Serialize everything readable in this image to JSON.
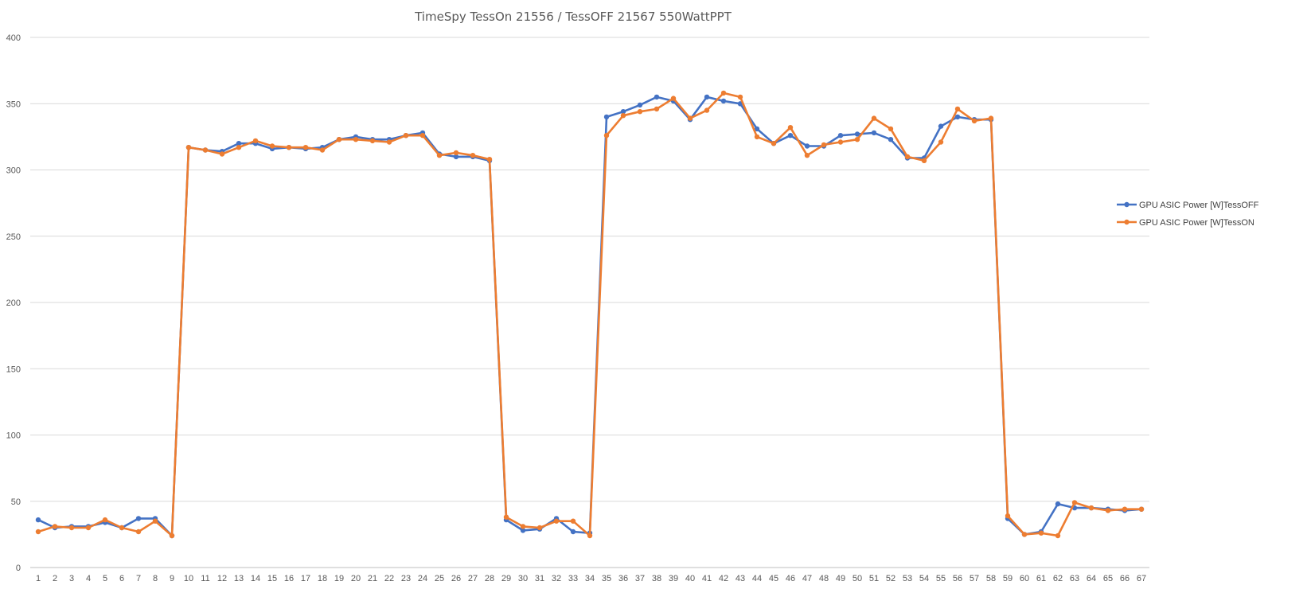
{
  "chart_data": {
    "type": "line",
    "title": "TimeSpy TessOn 21556 / TessOFF 21567 550WattPPT",
    "xlabel": "",
    "ylabel": "",
    "ylim": [
      0,
      400
    ],
    "yticks": [
      "0",
      "50",
      "100",
      "150",
      "200",
      "250",
      "300",
      "350",
      "400"
    ],
    "x": [
      "1",
      "2",
      "3",
      "4",
      "5",
      "6",
      "7",
      "8",
      "9",
      "10",
      "11",
      "12",
      "13",
      "14",
      "15",
      "16",
      "17",
      "18",
      "19",
      "20",
      "21",
      "22",
      "23",
      "24",
      "25",
      "26",
      "27",
      "28",
      "29",
      "30",
      "31",
      "32",
      "33",
      "34",
      "35",
      "36",
      "37",
      "38",
      "39",
      "40",
      "41",
      "42",
      "43",
      "44",
      "45",
      "46",
      "47",
      "48",
      "49",
      "50",
      "51",
      "52",
      "53",
      "54",
      "55",
      "56",
      "57",
      "58",
      "59",
      "60",
      "61",
      "62",
      "63",
      "64",
      "65",
      "66",
      "67"
    ],
    "grid": true,
    "legend_position": "right",
    "series": [
      {
        "name": "GPU ASIC Power [W]TessOFF",
        "color": "#4472C4",
        "values": [
          36,
          30,
          31,
          31,
          34,
          30,
          37,
          37,
          24,
          317,
          315,
          314,
          320,
          320,
          316,
          317,
          316,
          317,
          323,
          325,
          323,
          323,
          326,
          328,
          312,
          310,
          310,
          307,
          36,
          28,
          29,
          37,
          27,
          26,
          340,
          344,
          349,
          355,
          352,
          338,
          355,
          352,
          350,
          331,
          320,
          326,
          318,
          318,
          326,
          327,
          328,
          323,
          309,
          309,
          333,
          340,
          338,
          338,
          37,
          25,
          27,
          48,
          45,
          45,
          44,
          43,
          44
        ]
      },
      {
        "name": "GPU ASIC Power [W]TessON",
        "color": "#ED7D31",
        "values": [
          27,
          31,
          30,
          30,
          36,
          30,
          27,
          35,
          24,
          317,
          315,
          312,
          317,
          322,
          318,
          317,
          317,
          315,
          323,
          323,
          322,
          321,
          326,
          326,
          311,
          313,
          311,
          308,
          38,
          31,
          30,
          35,
          35,
          24,
          326,
          341,
          344,
          346,
          354,
          339,
          345,
          358,
          355,
          325,
          320,
          332,
          311,
          319,
          321,
          323,
          339,
          331,
          310,
          307,
          321,
          346,
          337,
          339,
          39,
          25,
          26,
          24,
          49,
          45,
          43,
          44,
          44
        ]
      }
    ]
  }
}
